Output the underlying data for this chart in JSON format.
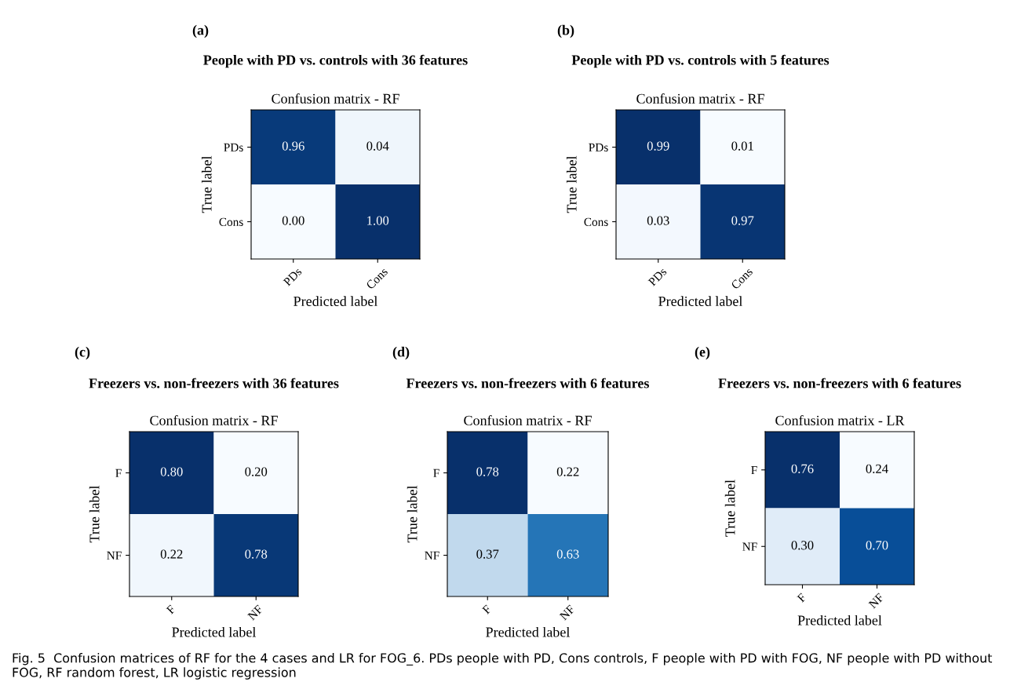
{
  "chart_data": [
    {
      "type": "heatmap",
      "title": "People with PD vs. controls with 36 features",
      "subtitle": "Confusion matrix - RF",
      "annotations": [
        "(a)"
      ],
      "xlabel": "Predicted label",
      "ylabel": "True label",
      "categories": [
        "PDs",
        "Cons"
      ],
      "y_categories": [
        "PDs",
        "Cons"
      ],
      "cells": [
        [
          0.96,
          0.04
        ],
        [
          0.0,
          1.0
        ]
      ],
      "cell_labels": [
        [
          "0.96",
          "0.04"
        ],
        [
          "0.00",
          "1.00"
        ]
      ]
    },
    {
      "type": "heatmap",
      "title": "People with PD vs. controls with 5 features",
      "subtitle": "Confusion matrix - RF",
      "annotations": [
        "(b)"
      ],
      "xlabel": "Predicted label",
      "ylabel": "True label",
      "categories": [
        "PDs",
        "Cons"
      ],
      "y_categories": [
        "PDs",
        "Cons"
      ],
      "cells": [
        [
          0.99,
          0.01
        ],
        [
          0.03,
          0.97
        ]
      ],
      "cell_labels": [
        [
          "0.99",
          "0.01"
        ],
        [
          "0.03",
          "0.97"
        ]
      ]
    },
    {
      "type": "heatmap",
      "title": "Freezers vs. non-freezers with 36 features",
      "subtitle": "Confusion matrix - RF",
      "annotations": [
        "(c)"
      ],
      "xlabel": "Predicted label",
      "ylabel": "True label",
      "categories": [
        "F",
        "NF"
      ],
      "y_categories": [
        "F",
        "NF"
      ],
      "cells": [
        [
          0.8,
          0.2
        ],
        [
          0.22,
          0.78
        ]
      ],
      "cell_labels": [
        [
          "0.80",
          "0.20"
        ],
        [
          "0.22",
          "0.78"
        ]
      ]
    },
    {
      "type": "heatmap",
      "title": "Freezers vs. non-freezers with 6 features",
      "subtitle": "Confusion matrix - RF",
      "annotations": [
        "(d)"
      ],
      "xlabel": "Predicted label",
      "ylabel": "True label",
      "categories": [
        "F",
        "NF"
      ],
      "y_categories": [
        "F",
        "NF"
      ],
      "cells": [
        [
          0.78,
          0.22
        ],
        [
          0.37,
          0.63
        ]
      ],
      "cell_labels": [
        [
          "0.78",
          "0.22"
        ],
        [
          "0.37",
          "0.63"
        ]
      ]
    },
    {
      "type": "heatmap",
      "title": "Freezers vs. non-freezers with 6 features",
      "subtitle": "Confusion matrix - LR",
      "annotations": [
        "(e)",
        "Fig. 5  Confusion matrices of RF for the 4 cases and LR for FOG_6. PDs people with PD, Cons controls, F people with PD with FOG, NF people with PD without FOG, RF random forest, LR logistic regression"
      ],
      "xlabel": "Predicted label",
      "ylabel": "True label",
      "categories": [
        "F",
        "NF"
      ],
      "y_categories": [
        "F",
        "NF"
      ],
      "cells": [
        [
          0.76,
          0.24
        ],
        [
          0.3,
          0.7
        ]
      ],
      "cell_labels": [
        [
          "0.76",
          "0.24"
        ],
        [
          "0.30",
          "0.70"
        ]
      ]
    }
  ]
}
